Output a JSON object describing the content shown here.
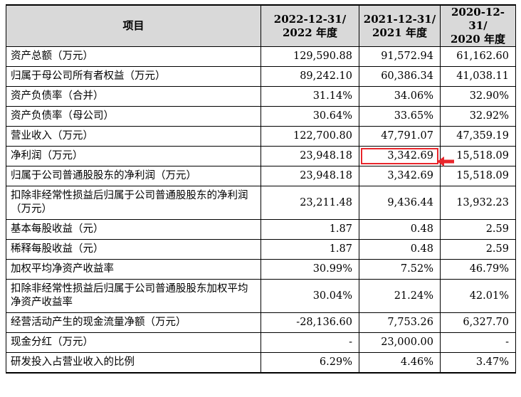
{
  "header": {
    "item": "项目",
    "col1": {
      "date": "2022-12-31/",
      "year": "2022 年度"
    },
    "col2": {
      "date": "2021-12-31/",
      "year": "2021 年度"
    },
    "col3": {
      "date": "2020-12-31/",
      "year": "2020 年度"
    }
  },
  "rows": [
    {
      "label": "资产总额（万元）",
      "v1": "129,590.88",
      "v2": "91,572.94",
      "v3": "61,162.60"
    },
    {
      "label": "归属于母公司所有者权益（万元）",
      "v1": "89,242.10",
      "v2": "60,386.34",
      "v3": "41,038.11"
    },
    {
      "label": "资产负债率（合并）",
      "v1": "31.14%",
      "v2": "34.06%",
      "v3": "32.90%"
    },
    {
      "label": "资产负债率（母公司）",
      "v1": "30.64%",
      "v2": "33.65%",
      "v3": "32.92%"
    },
    {
      "label": "营业收入（万元）",
      "v1": "122,700.80",
      "v2": "47,791.07",
      "v3": "47,359.19"
    },
    {
      "label": "净利润（万元）",
      "v1": "23,948.18",
      "v2": "3,342.69",
      "v3": "15,518.09"
    },
    {
      "label": "归属于公司普通股股东的净利润（万元）",
      "v1": "23,948.18",
      "v2": "3,342.69",
      "v3": "15,518.09"
    },
    {
      "label": "扣除非经常性损益后归属于公司普通股股东的净利润（万元）",
      "v1": "23,211.48",
      "v2": "9,436.44",
      "v3": "13,932.23"
    },
    {
      "label": "基本每股收益（元）",
      "v1": "1.87",
      "v2": "0.48",
      "v3": "2.59"
    },
    {
      "label": "稀释每股收益（元）",
      "v1": "1.87",
      "v2": "0.48",
      "v3": "2.59"
    },
    {
      "label": "加权平均净资产收益率",
      "v1": "30.99%",
      "v2": "7.52%",
      "v3": "46.79%"
    },
    {
      "label": "扣除非经常性损益后归属于公司普通股股东加权平均净资产收益率",
      "v1": "30.04%",
      "v2": "21.24%",
      "v3": "42.01%"
    },
    {
      "label": "经营活动产生的现金流量净额（万元）",
      "v1": "-28,136.60",
      "v2": "7,753.26",
      "v3": "6,327.70"
    },
    {
      "label": "现金分红（万元）",
      "v1": "-",
      "v2": "23,000.00",
      "v3": "-"
    },
    {
      "label": "研发投入占营业收入的比例",
      "v1": "6.29%",
      "v2": "4.46%",
      "v3": "3.47%"
    }
  ],
  "highlight": {
    "color": "#e8262c",
    "row_index": 5,
    "column": "2021"
  }
}
